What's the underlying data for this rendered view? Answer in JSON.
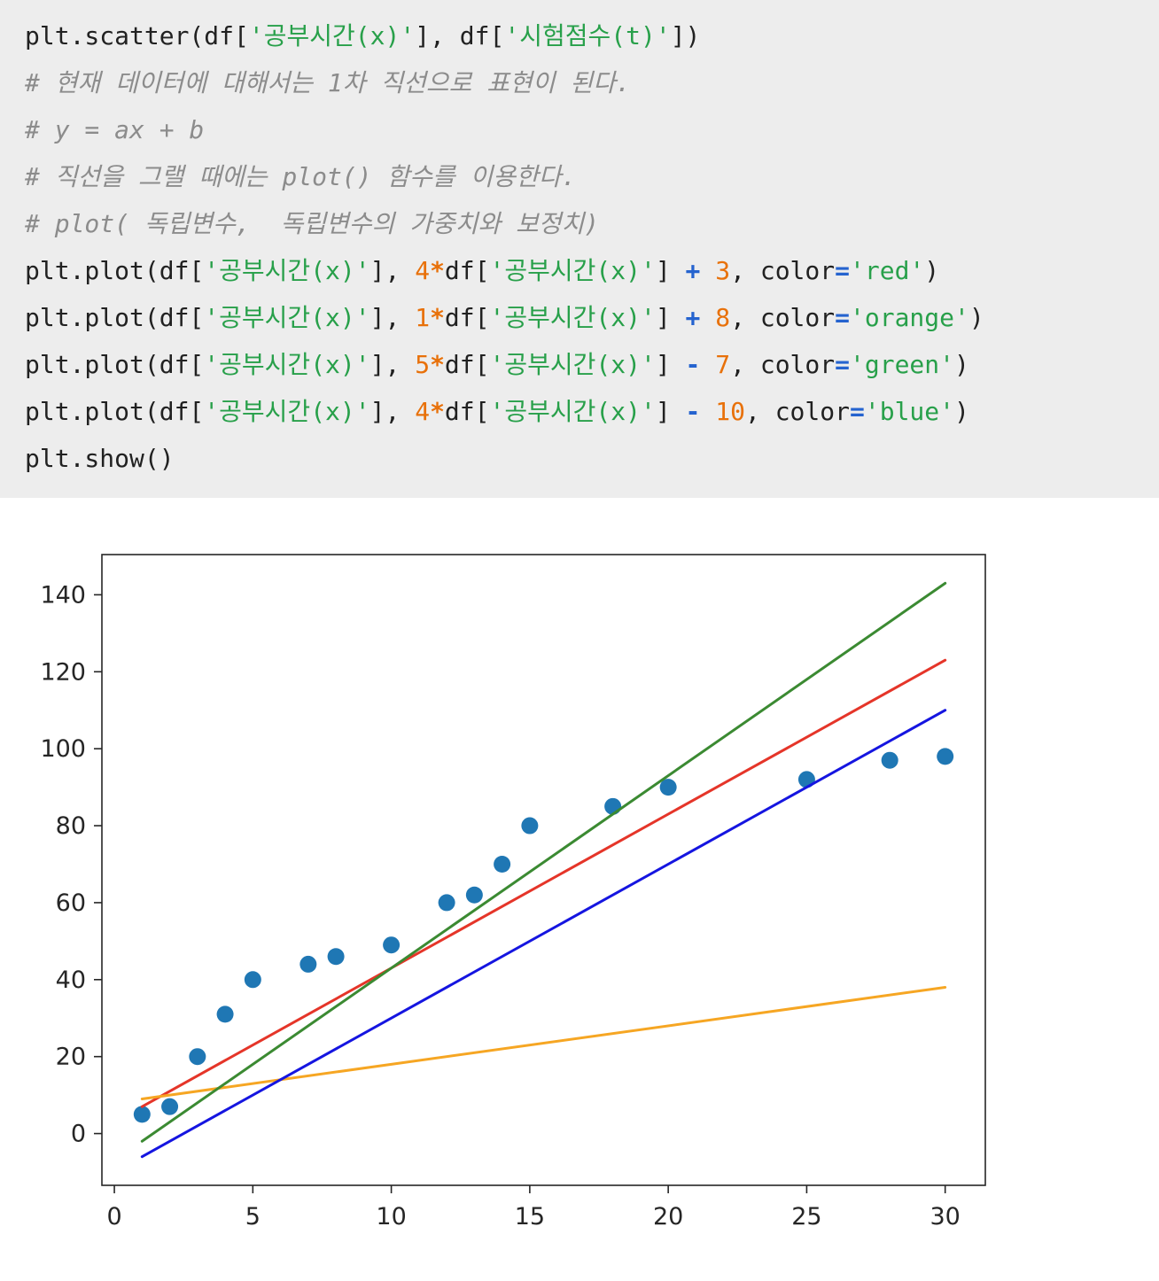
{
  "code_cell": {
    "background": "#ededed",
    "token_colors": {
      "p": "#212121",
      "s": "#28a04a",
      "n": "#e8710a",
      "ob": "#2563cf",
      "om": "#e8710a",
      "c": "#8c8c8c"
    },
    "lines": [
      [
        {
          "c": "p",
          "t": "plt.scatter(df["
        },
        {
          "c": "s",
          "t": "'공부시간(x)'"
        },
        {
          "c": "p",
          "t": "], df["
        },
        {
          "c": "s",
          "t": "'시험점수(t)'"
        },
        {
          "c": "p",
          "t": "])"
        }
      ],
      [
        {
          "c": "c",
          "t": "# 현재 데이터에 대해서는 1차 직선으로 표현이 된다."
        }
      ],
      [
        {
          "c": "c",
          "t": "# y = ax + b"
        }
      ],
      [
        {
          "c": "c",
          "t": "# 직선을 그랠 때에는 plot() 함수를 이용한다."
        }
      ],
      [
        {
          "c": "c",
          "t": "# plot( 독립변수,  독립변수의 가중치와 보정치)"
        }
      ],
      [
        {
          "c": "p",
          "t": "plt.plot(df["
        },
        {
          "c": "s",
          "t": "'공부시간(x)'"
        },
        {
          "c": "p",
          "t": "], "
        },
        {
          "c": "n",
          "t": "4"
        },
        {
          "c": "om",
          "t": "*"
        },
        {
          "c": "p",
          "t": "df["
        },
        {
          "c": "s",
          "t": "'공부시간(x)'"
        },
        {
          "c": "p",
          "t": "] "
        },
        {
          "c": "ob",
          "t": "+"
        },
        {
          "c": "p",
          "t": " "
        },
        {
          "c": "n",
          "t": "3"
        },
        {
          "c": "p",
          "t": ", color"
        },
        {
          "c": "ob",
          "t": "="
        },
        {
          "c": "s",
          "t": "'red'"
        },
        {
          "c": "p",
          "t": ")"
        }
      ],
      [
        {
          "c": "p",
          "t": "plt.plot(df["
        },
        {
          "c": "s",
          "t": "'공부시간(x)'"
        },
        {
          "c": "p",
          "t": "], "
        },
        {
          "c": "n",
          "t": "1"
        },
        {
          "c": "om",
          "t": "*"
        },
        {
          "c": "p",
          "t": "df["
        },
        {
          "c": "s",
          "t": "'공부시간(x)'"
        },
        {
          "c": "p",
          "t": "] "
        },
        {
          "c": "ob",
          "t": "+"
        },
        {
          "c": "p",
          "t": " "
        },
        {
          "c": "n",
          "t": "8"
        },
        {
          "c": "p",
          "t": ", color"
        },
        {
          "c": "ob",
          "t": "="
        },
        {
          "c": "s",
          "t": "'orange'"
        },
        {
          "c": "p",
          "t": ")"
        }
      ],
      [
        {
          "c": "p",
          "t": "plt.plot(df["
        },
        {
          "c": "s",
          "t": "'공부시간(x)'"
        },
        {
          "c": "p",
          "t": "], "
        },
        {
          "c": "n",
          "t": "5"
        },
        {
          "c": "om",
          "t": "*"
        },
        {
          "c": "p",
          "t": "df["
        },
        {
          "c": "s",
          "t": "'공부시간(x)'"
        },
        {
          "c": "p",
          "t": "] "
        },
        {
          "c": "ob",
          "t": "-"
        },
        {
          "c": "p",
          "t": " "
        },
        {
          "c": "n",
          "t": "7"
        },
        {
          "c": "p",
          "t": ", color"
        },
        {
          "c": "ob",
          "t": "="
        },
        {
          "c": "s",
          "t": "'green'"
        },
        {
          "c": "p",
          "t": ")"
        }
      ],
      [
        {
          "c": "p",
          "t": "plt.plot(df["
        },
        {
          "c": "s",
          "t": "'공부시간(x)'"
        },
        {
          "c": "p",
          "t": "], "
        },
        {
          "c": "n",
          "t": "4"
        },
        {
          "c": "om",
          "t": "*"
        },
        {
          "c": "p",
          "t": "df["
        },
        {
          "c": "s",
          "t": "'공부시간(x)'"
        },
        {
          "c": "p",
          "t": "] "
        },
        {
          "c": "ob",
          "t": "-"
        },
        {
          "c": "p",
          "t": " "
        },
        {
          "c": "n",
          "t": "10"
        },
        {
          "c": "p",
          "t": ", color"
        },
        {
          "c": "ob",
          "t": "="
        },
        {
          "c": "s",
          "t": "'blue'"
        },
        {
          "c": "p",
          "t": ")"
        }
      ],
      [
        {
          "c": "p",
          "t": "plt.show()"
        }
      ]
    ]
  },
  "chart_data": {
    "type": "scatter",
    "title": "",
    "xlabel": "",
    "ylabel": "",
    "xlim": [
      -0.45,
      31.45
    ],
    "ylim": [
      -13.45,
      150.45
    ],
    "x_ticks": [
      0,
      5,
      10,
      15,
      20,
      25,
      30
    ],
    "y_ticks": [
      0,
      20,
      40,
      60,
      80,
      100,
      120,
      140
    ],
    "grid": false,
    "legend": null,
    "scatter": {
      "name": "시험점수(t) vs 공부시간(x)",
      "color": "#1f77b4",
      "x": [
        1,
        2,
        3,
        4,
        5,
        7,
        8,
        10,
        12,
        13,
        14,
        15,
        18,
        20,
        25,
        28,
        30
      ],
      "y": [
        5,
        7,
        20,
        31,
        40,
        44,
        46,
        49,
        60,
        62,
        70,
        80,
        85,
        90,
        92,
        97,
        98
      ]
    },
    "x_line_range": [
      1,
      30
    ],
    "lines": [
      {
        "id": "red-line",
        "name": "y = 4x + 3",
        "color": "#e53529",
        "slope": 4,
        "intercept": 3
      },
      {
        "id": "orange-line",
        "name": "y = 1x + 8",
        "color": "#f6a623",
        "slope": 1,
        "intercept": 8
      },
      {
        "id": "green-line",
        "name": "y = 5x - 7",
        "color": "#3b8a32",
        "slope": 5,
        "intercept": -7
      },
      {
        "id": "blue-line",
        "name": "y = 4x - 10",
        "color": "#1515e0",
        "slope": 4,
        "intercept": -10
      }
    ]
  }
}
